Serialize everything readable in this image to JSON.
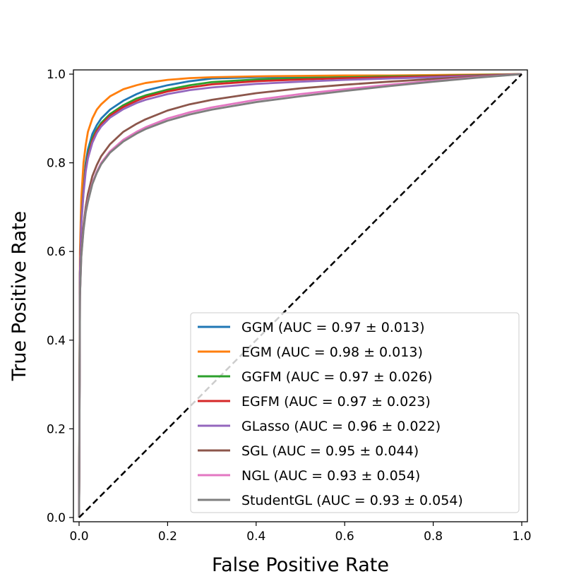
{
  "chart_data": {
    "type": "line",
    "title": "",
    "xlabel": "False Positive Rate",
    "ylabel": "True Positive Rate",
    "xlim": [
      0.0,
      1.0
    ],
    "ylim": [
      0.0,
      1.0
    ],
    "xticks": [
      "0.0",
      "0.2",
      "0.4",
      "0.6",
      "0.8",
      "1.0"
    ],
    "yticks": [
      "0.0",
      "0.2",
      "0.4",
      "0.6",
      "0.8",
      "1.0"
    ],
    "grid": false,
    "legend_position": "lower-right",
    "reference_line": {
      "x": [
        0,
        1
      ],
      "y": [
        0,
        1
      ],
      "style": "dashed",
      "color": "#000000"
    },
    "series": [
      {
        "name": "GGM",
        "label": "GGM (AUC = 0.97 ± 0.013)",
        "color": "#1f77b4",
        "x": [
          0,
          0.002,
          0.005,
          0.01,
          0.015,
          0.02,
          0.03,
          0.04,
          0.05,
          0.07,
          0.1,
          0.13,
          0.15,
          0.2,
          0.25,
          0.3,
          0.4,
          0.5,
          0.6,
          0.7,
          0.8,
          0.9,
          1.0
        ],
        "y": [
          0,
          0.55,
          0.68,
          0.75,
          0.8,
          0.83,
          0.865,
          0.885,
          0.9,
          0.92,
          0.94,
          0.955,
          0.963,
          0.975,
          0.984,
          0.99,
          0.993,
          0.994,
          0.995,
          0.996,
          0.997,
          0.998,
          1.0
        ]
      },
      {
        "name": "EGM",
        "label": "EGM (AUC = 0.98 ± 0.013)",
        "color": "#ff7f0e",
        "x": [
          0,
          0.002,
          0.005,
          0.01,
          0.015,
          0.02,
          0.03,
          0.04,
          0.05,
          0.07,
          0.1,
          0.13,
          0.15,
          0.2,
          0.25,
          0.3,
          0.4,
          0.5,
          0.6,
          0.7,
          0.8,
          0.9,
          1.0
        ],
        "y": [
          0,
          0.6,
          0.72,
          0.8,
          0.84,
          0.87,
          0.9,
          0.92,
          0.932,
          0.95,
          0.966,
          0.975,
          0.98,
          0.987,
          0.991,
          0.993,
          0.995,
          0.996,
          0.997,
          0.997,
          0.998,
          0.999,
          1.0
        ]
      },
      {
        "name": "GGFM",
        "label": "GGFM (AUC = 0.97 ± 0.026)",
        "color": "#2ca02c",
        "x": [
          0,
          0.002,
          0.005,
          0.01,
          0.015,
          0.02,
          0.03,
          0.04,
          0.05,
          0.07,
          0.1,
          0.13,
          0.15,
          0.2,
          0.25,
          0.3,
          0.4,
          0.5,
          0.6,
          0.7,
          0.8,
          0.9,
          1.0
        ],
        "y": [
          0,
          0.55,
          0.67,
          0.74,
          0.79,
          0.82,
          0.855,
          0.875,
          0.89,
          0.91,
          0.93,
          0.945,
          0.952,
          0.965,
          0.975,
          0.982,
          0.988,
          0.991,
          0.993,
          0.995,
          0.996,
          0.998,
          1.0
        ]
      },
      {
        "name": "EGFM",
        "label": "EGFM (AUC = 0.97 ± 0.023)",
        "color": "#d62728",
        "x": [
          0,
          0.002,
          0.005,
          0.01,
          0.015,
          0.02,
          0.03,
          0.04,
          0.05,
          0.07,
          0.1,
          0.13,
          0.15,
          0.2,
          0.25,
          0.3,
          0.4,
          0.5,
          0.6,
          0.7,
          0.8,
          0.9,
          1.0
        ],
        "y": [
          0,
          0.55,
          0.665,
          0.735,
          0.785,
          0.815,
          0.85,
          0.872,
          0.886,
          0.906,
          0.926,
          0.94,
          0.948,
          0.961,
          0.97,
          0.977,
          0.984,
          0.988,
          0.991,
          0.993,
          0.995,
          0.997,
          1.0
        ]
      },
      {
        "name": "GLasso",
        "label": "GLasso (AUC = 0.96 ± 0.022)",
        "color": "#9467bd",
        "x": [
          0,
          0.002,
          0.005,
          0.01,
          0.015,
          0.02,
          0.03,
          0.04,
          0.05,
          0.07,
          0.1,
          0.13,
          0.15,
          0.2,
          0.25,
          0.3,
          0.4,
          0.5,
          0.6,
          0.7,
          0.8,
          0.9,
          1.0
        ],
        "y": [
          0,
          0.55,
          0.66,
          0.73,
          0.78,
          0.81,
          0.845,
          0.867,
          0.882,
          0.902,
          0.921,
          0.935,
          0.942,
          0.955,
          0.964,
          0.97,
          0.978,
          0.983,
          0.987,
          0.99,
          0.993,
          0.996,
          1.0
        ]
      },
      {
        "name": "SGL",
        "label": "SGL (AUC = 0.95 ± 0.044)",
        "color": "#8c564b",
        "x": [
          0,
          0.002,
          0.005,
          0.01,
          0.015,
          0.02,
          0.03,
          0.04,
          0.05,
          0.07,
          0.1,
          0.13,
          0.15,
          0.2,
          0.25,
          0.3,
          0.4,
          0.5,
          0.6,
          0.7,
          0.8,
          0.9,
          1.0
        ],
        "y": [
          0,
          0.5,
          0.6,
          0.66,
          0.7,
          0.73,
          0.77,
          0.795,
          0.815,
          0.842,
          0.87,
          0.888,
          0.898,
          0.918,
          0.932,
          0.942,
          0.957,
          0.968,
          0.976,
          0.983,
          0.989,
          0.995,
          1.0
        ]
      },
      {
        "name": "NGL",
        "label": "NGL (AUC = 0.93 ± 0.054)",
        "color": "#e377c2",
        "x": [
          0,
          0.002,
          0.005,
          0.01,
          0.015,
          0.02,
          0.03,
          0.04,
          0.05,
          0.07,
          0.1,
          0.13,
          0.15,
          0.2,
          0.25,
          0.3,
          0.4,
          0.5,
          0.6,
          0.7,
          0.8,
          0.9,
          1.0
        ],
        "y": [
          0,
          0.5,
          0.59,
          0.65,
          0.69,
          0.715,
          0.755,
          0.78,
          0.8,
          0.826,
          0.852,
          0.87,
          0.88,
          0.9,
          0.914,
          0.925,
          0.942,
          0.955,
          0.966,
          0.976,
          0.985,
          0.993,
          1.0
        ]
      },
      {
        "name": "StudentGL",
        "label": "StudentGL (AUC = 0.93 ± 0.054)",
        "color": "#7f7f7f",
        "x": [
          0,
          0.002,
          0.005,
          0.01,
          0.015,
          0.02,
          0.03,
          0.04,
          0.05,
          0.07,
          0.1,
          0.13,
          0.15,
          0.2,
          0.25,
          0.3,
          0.4,
          0.5,
          0.6,
          0.7,
          0.8,
          0.9,
          1.0
        ],
        "y": [
          0,
          0.5,
          0.588,
          0.648,
          0.688,
          0.712,
          0.752,
          0.777,
          0.797,
          0.823,
          0.848,
          0.866,
          0.876,
          0.895,
          0.909,
          0.92,
          0.937,
          0.95,
          0.962,
          0.973,
          0.983,
          0.992,
          1.0
        ]
      }
    ]
  }
}
